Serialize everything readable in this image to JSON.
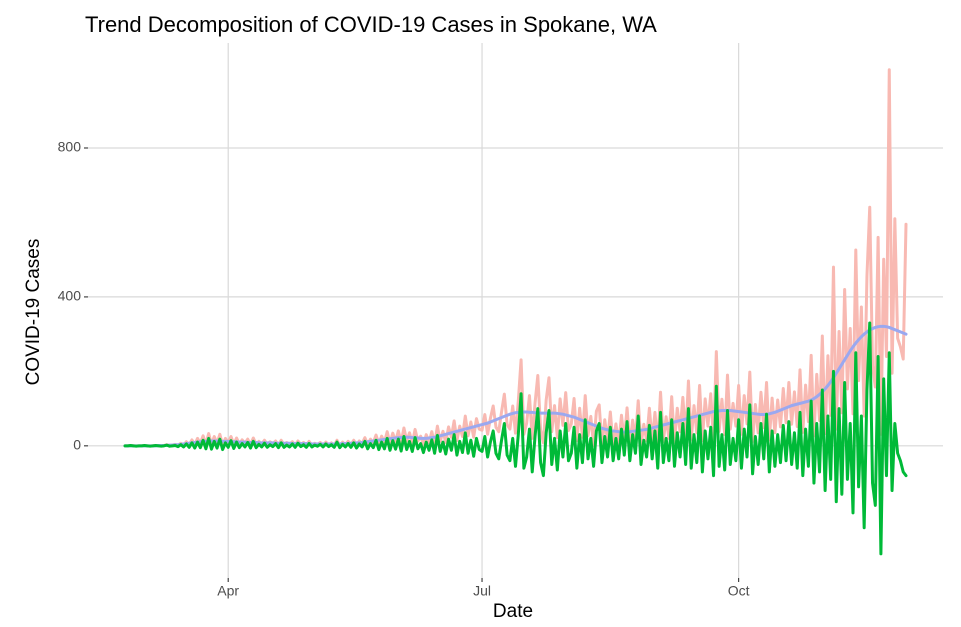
{
  "chart_data": {
    "type": "line",
    "title": "Trend Decomposition of COVID-19 Cases in Spokane, WA",
    "x_label": "Date",
    "y_label": "COVID-19 Cases",
    "categories": [
      null,
      null,
      null,
      null,
      null,
      null,
      null,
      null,
      null,
      null,
      null,
      null,
      null,
      null,
      null,
      null,
      null,
      null,
      null,
      null,
      null,
      null,
      null,
      null,
      null,
      null,
      null,
      null,
      null,
      null,
      null,
      null,
      null,
      null,
      null,
      null,
      null,
      "Apr",
      null,
      null,
      null,
      null,
      null,
      null,
      null,
      null,
      null,
      null,
      null,
      null,
      null,
      null,
      null,
      null,
      null,
      null,
      null,
      null,
      null,
      null,
      null,
      null,
      null,
      null,
      null,
      null,
      null,
      null,
      null,
      null,
      null,
      null,
      null,
      null,
      null,
      null,
      null,
      null,
      null,
      null,
      null,
      null,
      null,
      null,
      null,
      null,
      null,
      null,
      null,
      null,
      null,
      null,
      null,
      null,
      null,
      null,
      null,
      null,
      null,
      null,
      null,
      null,
      null,
      null,
      null,
      null,
      null,
      null,
      null,
      null,
      null,
      null,
      null,
      null,
      null,
      null,
      null,
      null,
      null,
      null,
      null,
      null,
      null,
      null,
      null,
      null,
      null,
      null,
      "Jul",
      null,
      null,
      null,
      null,
      null,
      null,
      null,
      null,
      null,
      null,
      null,
      null,
      null,
      null,
      null,
      null,
      null,
      null,
      null,
      null,
      null,
      null,
      null,
      null,
      null,
      null,
      null,
      null,
      null,
      null,
      null,
      null,
      null,
      null,
      null,
      null,
      null,
      null,
      null,
      null,
      null,
      null,
      null,
      null,
      null,
      null,
      null,
      null,
      null,
      null,
      null,
      null,
      null,
      null,
      null,
      null,
      null,
      null,
      null,
      null,
      null,
      null,
      null,
      null,
      null,
      null,
      null,
      null,
      null,
      null,
      null,
      null,
      null,
      null,
      null,
      null,
      null,
      null,
      null,
      null,
      null,
      null,
      null,
      null,
      null,
      null,
      null,
      null,
      null,
      null,
      null,
      "Oct",
      null,
      null,
      null,
      null,
      null,
      null,
      null,
      null,
      null,
      null,
      null,
      null,
      null,
      null,
      null,
      null,
      null,
      null,
      null,
      null,
      null,
      null,
      null,
      null,
      null,
      null,
      null,
      null,
      null,
      null,
      null,
      null,
      null,
      null,
      null,
      null,
      null,
      null,
      null,
      null,
      null,
      null,
      null,
      null,
      null,
      null,
      null,
      null,
      null,
      null,
      null,
      null,
      null,
      null,
      null,
      null,
      null,
      null,
      null,
      null
    ],
    "series": [
      {
        "color": "#f8b9b2",
        "values": [
          0,
          0,
          1,
          0,
          0,
          0,
          0,
          1,
          0,
          0,
          0,
          1,
          1,
          0,
          1,
          3,
          1,
          2,
          4,
          1,
          7,
          2,
          11,
          3,
          16,
          3,
          20,
          6,
          27,
          4,
          33,
          4,
          25,
          7,
          31,
          2,
          20,
          8,
          25,
          4,
          21,
          5,
          16,
          7,
          18,
          3,
          21,
          4,
          12,
          5,
          15,
          4,
          11,
          6,
          13,
          2,
          15,
          3,
          9,
          4,
          11,
          2,
          13,
          4,
          9,
          2,
          12,
          2,
          7,
          4,
          9,
          2,
          10,
          3,
          8,
          1,
          15,
          0,
          10,
          3,
          12,
          3,
          15,
          2,
          13,
          6,
          22,
          3,
          18,
          8,
          29,
          5,
          26,
          9,
          38,
          7,
          34,
          12,
          40,
          8,
          48,
          13,
          35,
          7,
          44,
          13,
          26,
          2,
          30,
          9,
          38,
          3,
          53,
          12,
          39,
          9,
          51,
          23,
          67,
          14,
          53,
          25,
          80,
          27,
          64,
          23,
          73,
          45,
          42,
          84,
          31,
          74,
          107,
          50,
          38,
          91,
          139,
          57,
          45,
          107,
          34,
          120,
          231,
          31,
          61,
          135,
          20,
          114,
          189,
          43,
          8,
          123,
          183,
          38,
          108,
          22,
          126,
          55,
          143,
          41,
          59,
          127,
          14,
          101,
          23,
          135,
          27,
          79,
          1,
          93,
          110,
          2,
          70,
          13,
          91,
          0,
          59,
          3,
          82,
          12,
          102,
          0,
          69,
          20,
          121,
          0,
          58,
          14,
          101,
          13,
          90,
          0,
          144,
          11,
          78,
          20,
          132,
          9,
          101,
          38,
          130,
          22,
          174,
          16,
          108,
          35,
          162,
          14,
          126,
          53,
          140,
          12,
          253,
          39,
          125,
          30,
          190,
          45,
          114,
          53,
          162,
          31,
          135,
          59,
          198,
          12,
          111,
          35,
          144,
          49,
          170,
          16,
          128,
          35,
          123,
          51,
          154,
          62,
          170,
          58,
          145,
          52,
          204,
          36,
          163,
          65,
          243,
          27,
          192,
          68,
          295,
          33,
          242,
          82,
          480,
          45,
          307,
          89,
          420,
          153,
          315,
          86,
          526,
          175,
          373,
          80,
          456,
          641,
          215,
          158,
          560,
          31,
          501,
          240,
          1010,
          195,
          610,
          289,
          266,
          233,
          595
        ]
      },
      {
        "color": "#9aa8f0",
        "values": [
          0,
          0,
          0,
          0,
          0,
          0,
          0,
          0,
          0,
          0,
          0,
          0,
          1,
          1,
          1,
          1,
          2,
          2,
          3,
          3,
          4,
          5,
          6,
          7,
          8,
          9,
          10,
          11,
          12,
          12,
          13,
          13,
          13,
          13,
          13,
          12,
          12,
          12,
          11,
          11,
          11,
          10,
          10,
          10,
          9,
          9,
          9,
          9,
          8,
          8,
          8,
          8,
          8,
          8,
          7,
          7,
          7,
          7,
          7,
          7,
          6,
          6,
          6,
          6,
          6,
          6,
          6,
          5,
          5,
          5,
          5,
          5,
          5,
          5,
          5,
          5,
          5,
          5,
          6,
          6,
          6,
          7,
          7,
          8,
          8,
          9,
          10,
          11,
          12,
          13,
          14,
          15,
          16,
          17,
          18,
          19,
          20,
          21,
          22,
          22,
          23,
          23,
          23,
          22,
          22,
          21,
          20,
          20,
          20,
          21,
          22,
          23,
          25,
          27,
          29,
          31,
          33,
          35,
          37,
          39,
          41,
          43,
          45,
          47,
          49,
          51,
          53,
          55,
          57,
          59,
          61,
          64,
          67,
          70,
          73,
          76,
          79,
          82,
          85,
          87,
          89,
          90,
          91,
          91,
          91,
          90,
          90,
          89,
          89,
          88,
          88,
          88,
          88,
          88,
          88,
          87,
          86,
          85,
          83,
          81,
          79,
          77,
          74,
          71,
          68,
          65,
          62,
          59,
          56,
          53,
          50,
          47,
          45,
          43,
          41,
          40,
          39,
          38,
          37,
          37,
          37,
          38,
          39,
          40,
          41,
          42,
          43,
          44,
          46,
          48,
          50,
          52,
          54,
          56,
          58,
          60,
          62,
          64,
          66,
          68,
          70,
          72,
          74,
          76,
          78,
          80,
          82,
          84,
          86,
          88,
          90,
          92,
          93,
          94,
          95,
          95,
          95,
          95,
          94,
          93,
          92,
          91,
          90,
          89,
          88,
          87,
          86,
          85,
          84,
          84,
          85,
          86,
          88,
          90,
          93,
          96,
          99,
          102,
          105,
          108,
          110,
          112,
          114,
          116,
          118,
          120,
          123,
          127,
          132,
          138,
          145,
          153,
          162,
          172,
          183,
          195,
          207,
          219,
          231,
          243,
          255,
          266,
          276,
          285,
          293,
          300,
          306,
          311,
          315,
          318,
          320,
          321,
          321,
          320,
          318,
          315,
          312,
          309,
          306,
          303,
          300
        ]
      },
      {
        "color": "#00ba38",
        "values": [
          0,
          0,
          1,
          0,
          -1,
          0,
          0,
          1,
          0,
          -1,
          0,
          1,
          0,
          -1,
          0,
          2,
          -1,
          0,
          1,
          -2,
          3,
          -3,
          5,
          -4,
          8,
          -6,
          10,
          -5,
          15,
          -8,
          20,
          -9,
          12,
          -6,
          18,
          -10,
          8,
          -4,
          14,
          -7,
          10,
          -5,
          6,
          -3,
          9,
          -6,
          12,
          -5,
          4,
          -3,
          7,
          -4,
          3,
          -2,
          6,
          -5,
          8,
          -4,
          2,
          -3,
          5,
          -4,
          7,
          -2,
          3,
          -4,
          6,
          -3,
          2,
          -1,
          4,
          -3,
          5,
          -2,
          3,
          -4,
          10,
          -5,
          4,
          -3,
          6,
          -4,
          8,
          -6,
          5,
          -3,
          12,
          -8,
          6,
          -5,
          15,
          -10,
          10,
          -8,
          20,
          -12,
          14,
          -9,
          18,
          -14,
          25,
          -10,
          12,
          -15,
          22,
          -8,
          6,
          -18,
          10,
          -12,
          16,
          -20,
          28,
          -15,
          10,
          -22,
          18,
          -12,
          30,
          -25,
          12,
          -18,
          35,
          -20,
          15,
          -28,
          20,
          -10,
          -15,
          25,
          -30,
          10,
          40,
          -20,
          -35,
          15,
          60,
          -25,
          -40,
          20,
          -55,
          30,
          140,
          -60,
          -30,
          45,
          -70,
          25,
          100,
          -45,
          -80,
          35,
          95,
          -50,
          20,
          -65,
          40,
          -30,
          60,
          -40,
          -20,
          50,
          -60,
          30,
          -45,
          70,
          -35,
          20,
          -55,
          40,
          60,
          -45,
          25,
          -30,
          50,
          -40,
          20,
          -35,
          45,
          -25,
          65,
          -40,
          30,
          -20,
          80,
          -50,
          15,
          -30,
          55,
          -35,
          40,
          -60,
          90,
          -45,
          20,
          -40,
          70,
          -55,
          35,
          -30,
          60,
          -50,
          100,
          -60,
          30,
          -45,
          80,
          -70,
          40,
          -35,
          50,
          -80,
          160,
          -55,
          30,
          -65,
          95,
          -50,
          20,
          -40,
          70,
          -60,
          45,
          -30,
          110,
          -75,
          25,
          -50,
          60,
          -35,
          85,
          -70,
          40,
          -55,
          30,
          -45,
          55,
          -40,
          65,
          -50,
          35,
          -60,
          90,
          -80,
          45,
          -55,
          120,
          -100,
          60,
          -70,
          150,
          -120,
          80,
          -90,
          200,
          -150,
          100,
          -130,
          170,
          -90,
          60,
          -180,
          250,
          -110,
          80,
          -220,
          150,
          330,
          -100,
          -160,
          240,
          -290,
          180,
          -80,
          250,
          -120,
          60,
          -20,
          -40,
          -70,
          -80
        ]
      }
    ],
    "ylim": [
      -355,
      1082
    ],
    "yticks": [
      0,
      400,
      800
    ],
    "grid": true
  }
}
